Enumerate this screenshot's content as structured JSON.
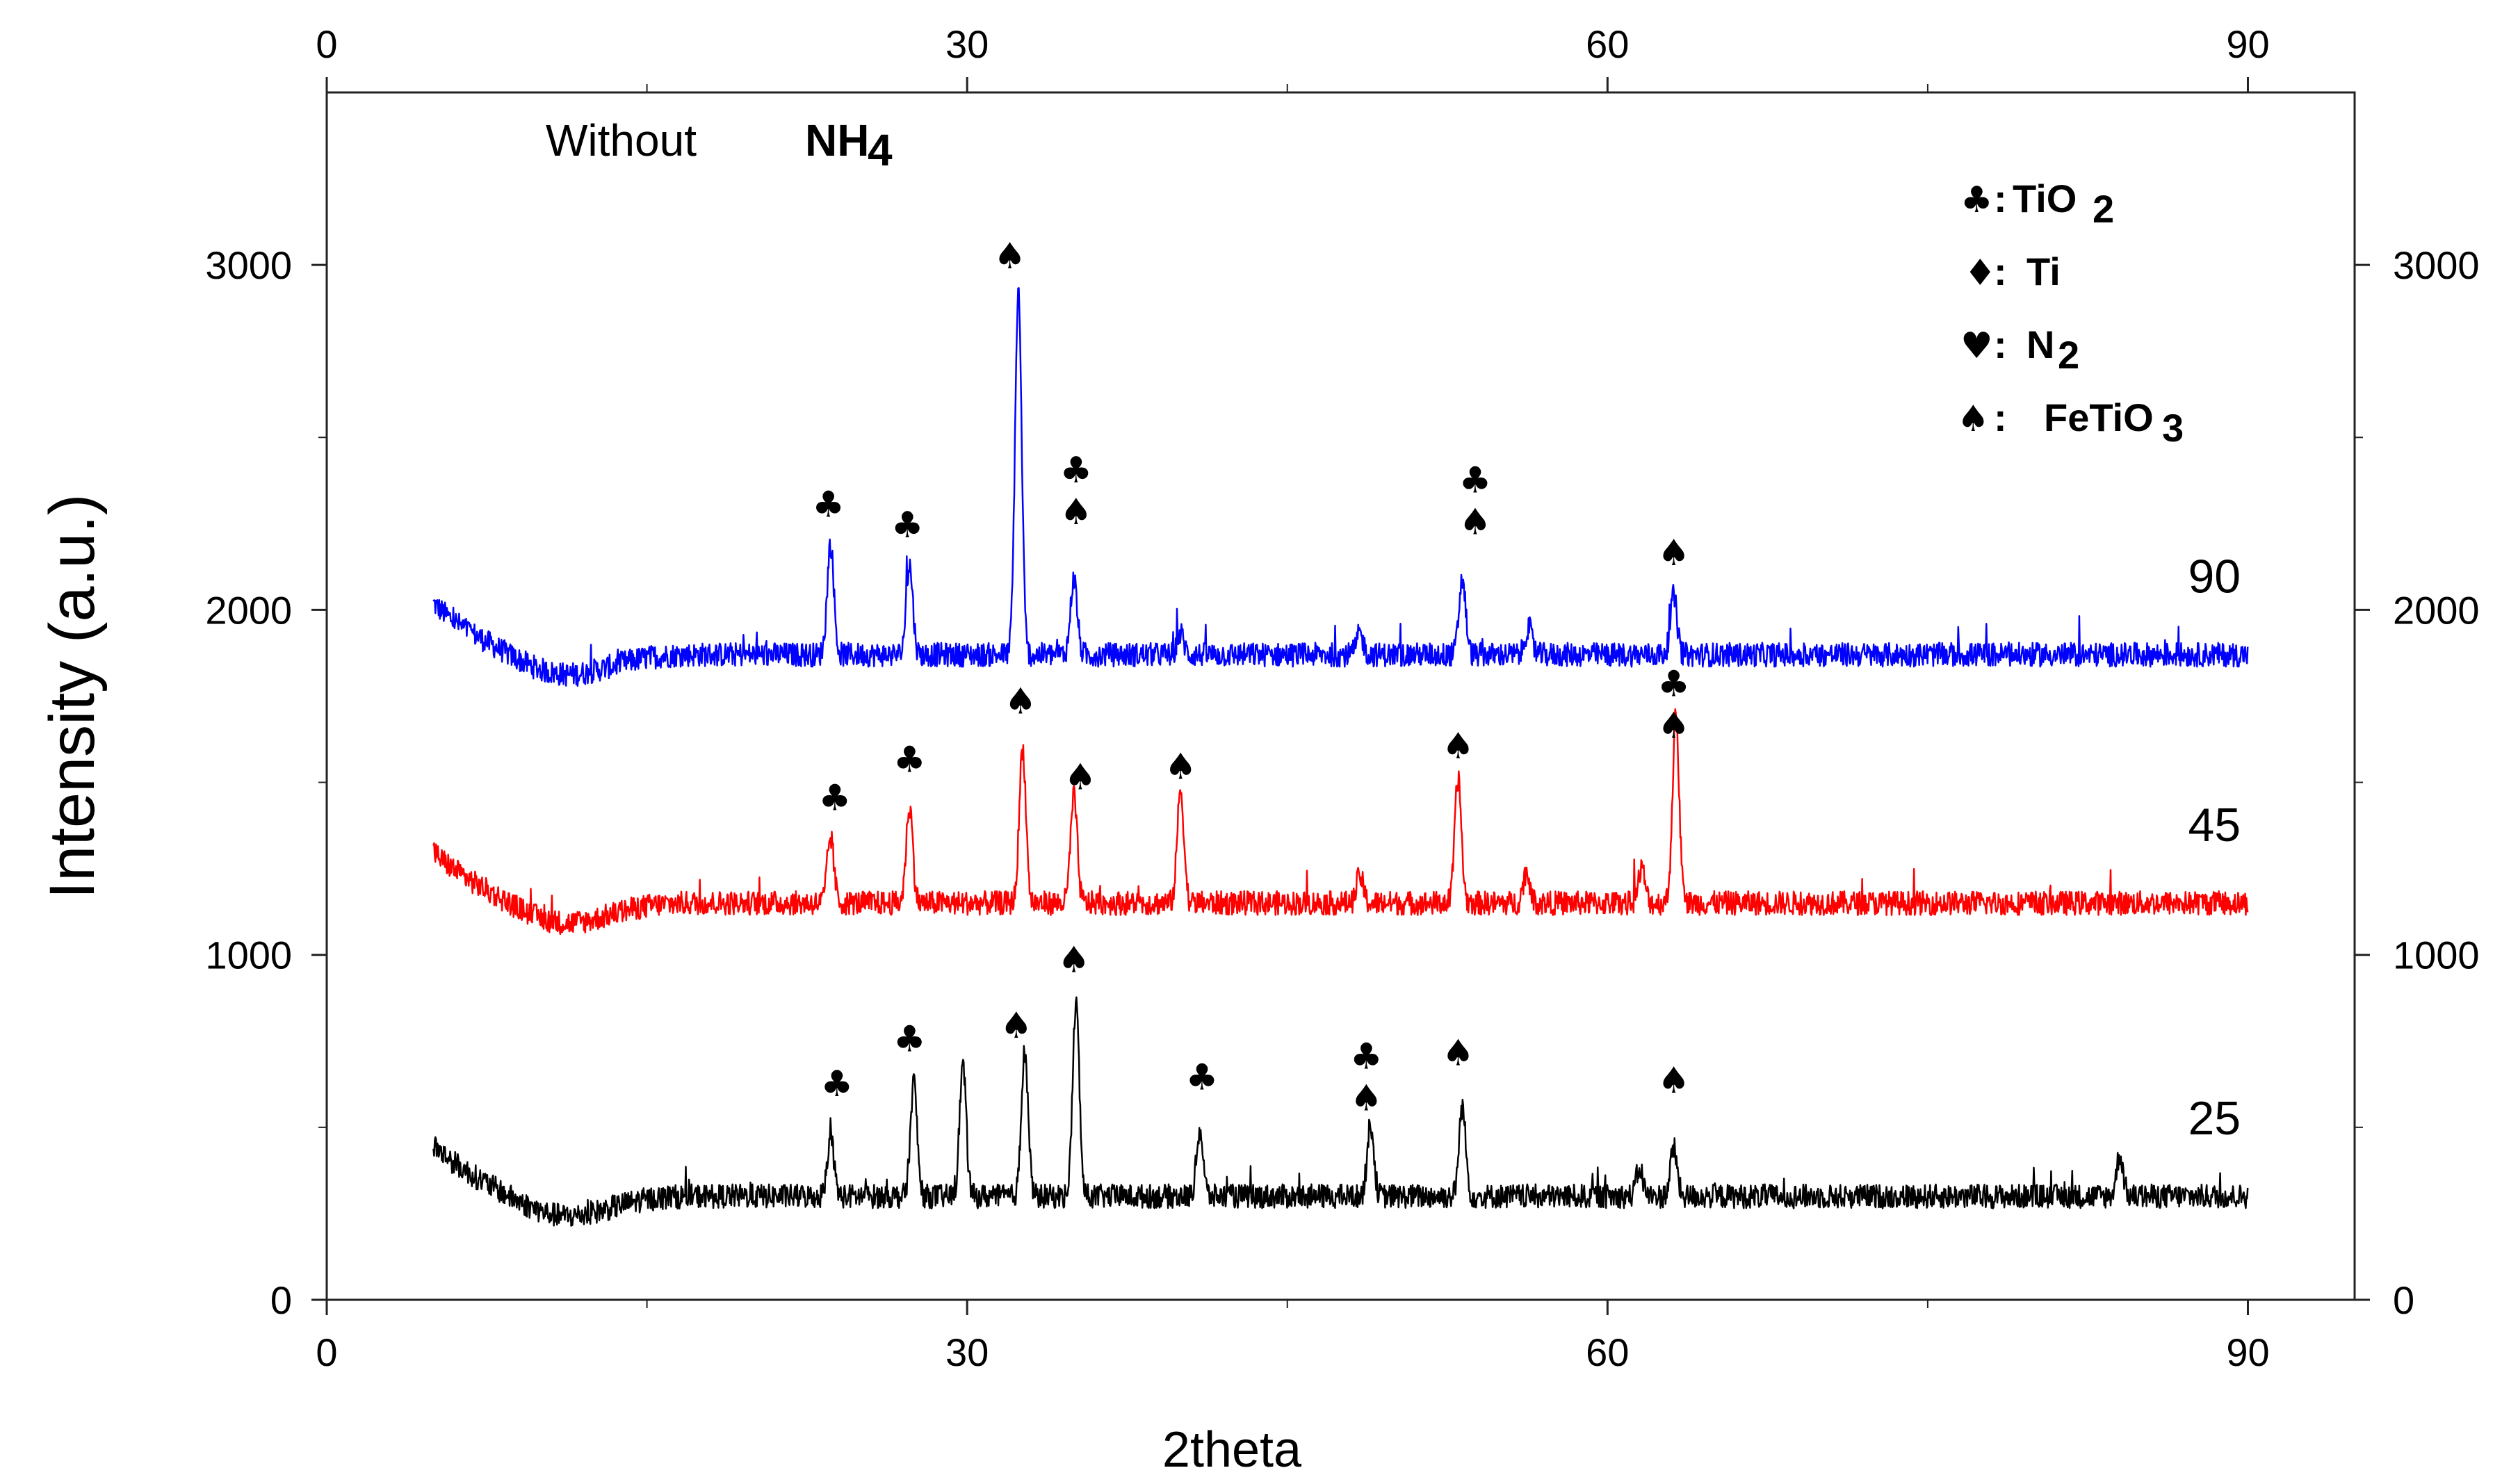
{
  "chart_data": {
    "type": "line",
    "title": "Without",
    "title_bold": "NH",
    "title_sub": "4",
    "xlabel": "2theta",
    "ylabel": "Intensity (a.u.)",
    "xlim": [
      0,
      95
    ],
    "ylim": [
      0,
      3500
    ],
    "x_ticks": [
      0,
      30,
      60,
      90
    ],
    "x_tick_labels": [
      "0",
      "30",
      "60",
      "90"
    ],
    "y_ticks": [
      0,
      1000,
      2000,
      3000
    ],
    "y_tick_labels": [
      "0",
      "1000",
      "2000",
      "3000"
    ],
    "legend": [
      {
        "symbol": "♣",
        "label": "TiO",
        "sub": "2",
        "phase": "TiO2"
      },
      {
        "symbol": "♦",
        "label": "Ti",
        "sub": "",
        "phase": "Ti"
      },
      {
        "symbol": "♥",
        "label": "N",
        "sub": "2",
        "phase": "N2"
      },
      {
        "symbol": "♠",
        "label": "FeTiO",
        "sub": "3",
        "phase": "FeTiO3"
      }
    ],
    "series": [
      {
        "name": "90",
        "label": "90",
        "color": "#0000ff",
        "baseline": 1870,
        "x_range": [
          5,
          90
        ],
        "peaks": [
          [
            23.6,
            320
          ],
          [
            27.3,
            260
          ],
          [
            32.4,
            1050
          ],
          [
            35.0,
            220
          ],
          [
            53.2,
            220
          ],
          [
            63.1,
            170
          ],
          [
            40.0,
            60
          ],
          [
            48.4,
            60
          ],
          [
            56.3,
            80
          ]
        ],
        "markers": [
          {
            "x": 23.5,
            "y": 2270,
            "symbols": [
              "♣"
            ]
          },
          {
            "x": 27.2,
            "y": 2210,
            "symbols": [
              "♣"
            ]
          },
          {
            "x": 32.0,
            "y": 2990,
            "symbols": [
              "♠"
            ]
          },
          {
            "x": 35.1,
            "y": 2370,
            "symbols": [
              "♣",
              "♠"
            ]
          },
          {
            "x": 53.8,
            "y": 2340,
            "symbols": [
              "♣",
              "♠"
            ]
          },
          {
            "x": 63.1,
            "y": 2130,
            "symbols": [
              "♠"
            ]
          }
        ]
      },
      {
        "name": "45",
        "label": "45",
        "color": "#ff0000",
        "baseline": 1150,
        "x_range": [
          5,
          90
        ],
        "peaks": [
          [
            23.6,
            190
          ],
          [
            27.3,
            280
          ],
          [
            32.6,
            450
          ],
          [
            35.0,
            310
          ],
          [
            40.0,
            330
          ],
          [
            53.0,
            360
          ],
          [
            63.2,
            540
          ],
          [
            48.4,
            80
          ],
          [
            56.2,
            90
          ],
          [
            61.6,
            100
          ]
        ],
        "markers": [
          {
            "x": 23.8,
            "y": 1420,
            "symbols": [
              "♣"
            ]
          },
          {
            "x": 27.3,
            "y": 1530,
            "symbols": [
              "♣"
            ]
          },
          {
            "x": 32.5,
            "y": 1700,
            "symbols": [
              "♠"
            ]
          },
          {
            "x": 35.3,
            "y": 1480,
            "symbols": [
              "♠"
            ]
          },
          {
            "x": 40.0,
            "y": 1510,
            "symbols": [
              "♠"
            ]
          },
          {
            "x": 53.0,
            "y": 1570,
            "symbols": [
              "♠"
            ]
          },
          {
            "x": 63.1,
            "y": 1750,
            "symbols": [
              "♣",
              "♠"
            ]
          }
        ]
      },
      {
        "name": "25",
        "label": "25",
        "color": "#000000",
        "baseline": 300,
        "x_range": [
          5,
          90
        ],
        "peaks": [
          [
            23.6,
            180
          ],
          [
            27.5,
            330
          ],
          [
            29.8,
            380
          ],
          [
            32.7,
            420
          ],
          [
            35.1,
            560
          ],
          [
            40.9,
            190
          ],
          [
            48.9,
            210
          ],
          [
            53.2,
            260
          ],
          [
            63.1,
            140
          ],
          [
            61.5,
            80
          ],
          [
            84.0,
            120
          ]
        ],
        "markers": [
          {
            "x": 23.9,
            "y": 590,
            "symbols": [
              "♣"
            ]
          },
          {
            "x": 27.3,
            "y": 720,
            "symbols": [
              "♣"
            ]
          },
          {
            "x": 32.3,
            "y": 760,
            "symbols": [
              "♠"
            ]
          },
          {
            "x": 35.0,
            "y": 950,
            "symbols": [
              "♠"
            ]
          },
          {
            "x": 41.0,
            "y": 610,
            "symbols": [
              "♣"
            ]
          },
          {
            "x": 48.7,
            "y": 670,
            "symbols": [
              "♣",
              "♠"
            ]
          },
          {
            "x": 53.0,
            "y": 680,
            "symbols": [
              "♠"
            ]
          },
          {
            "x": 63.1,
            "y": 600,
            "symbols": [
              "♠"
            ]
          }
        ]
      }
    ]
  }
}
